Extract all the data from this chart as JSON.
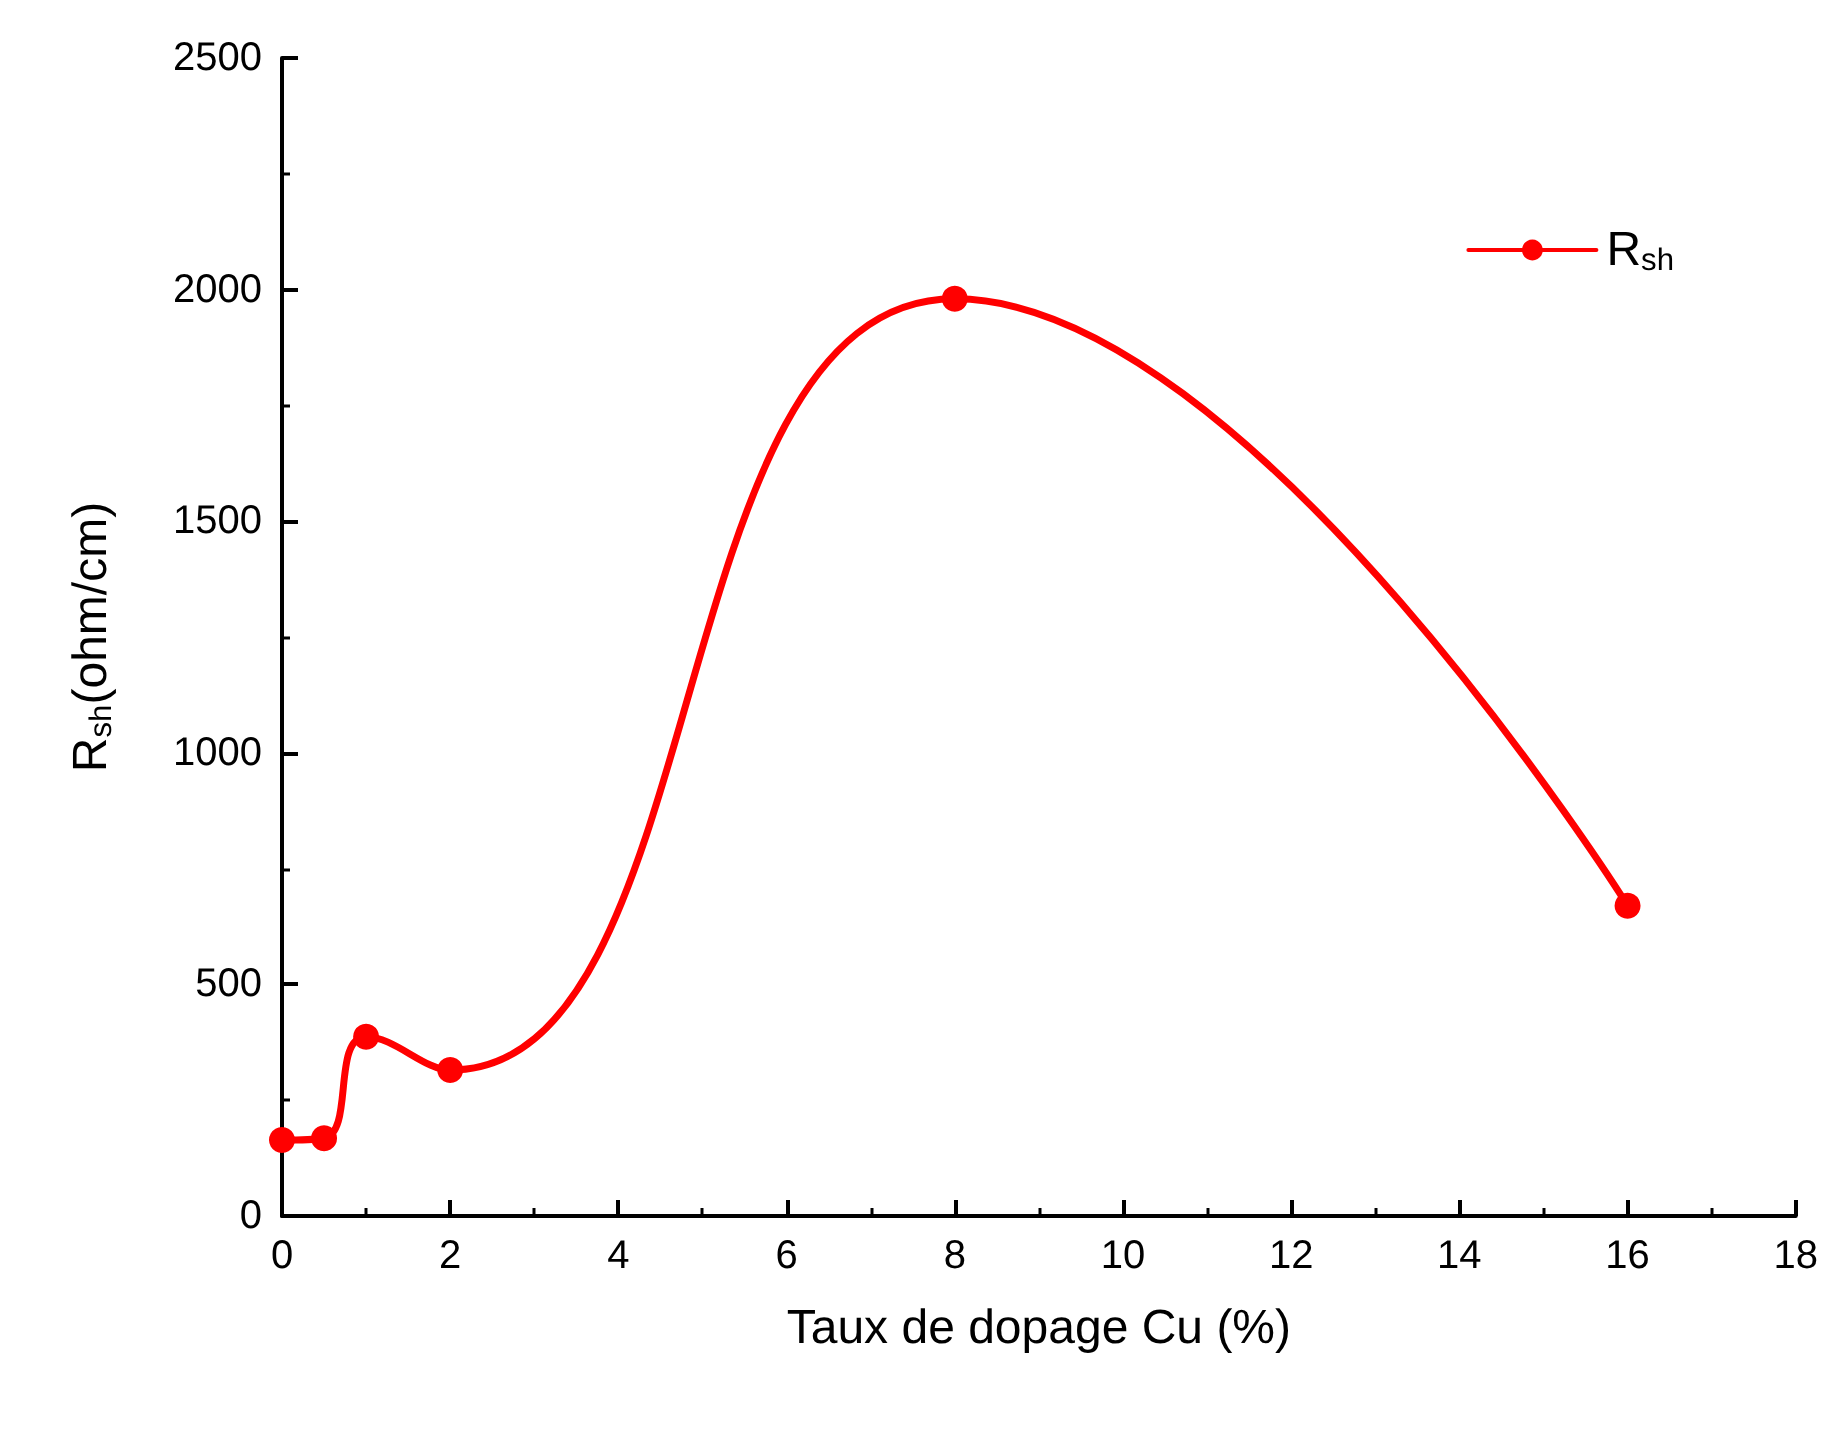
{
  "chart_data": {
    "type": "line",
    "xlabel": "Taux de dopage Cu (%)",
    "ylabel": "R$_{sh}$(ohm/cm)",
    "x": [
      0,
      0.5,
      1,
      2,
      8,
      16
    ],
    "series": [
      {
        "name": "R$_{sh}$",
        "color": "#ff0000",
        "values": [
          164,
          168,
          387,
          315,
          1980,
          670
        ]
      }
    ],
    "xlim": [
      0,
      18
    ],
    "xticks": [
      0,
      2,
      4,
      6,
      8,
      10,
      12,
      14,
      16,
      18
    ],
    "ylim": [
      0,
      2500
    ],
    "yticks": [
      0,
      500,
      1000,
      1500,
      2000,
      2500
    ],
    "grid": false,
    "legend": "top right",
    "marker": "circle",
    "line_style": "solid"
  }
}
